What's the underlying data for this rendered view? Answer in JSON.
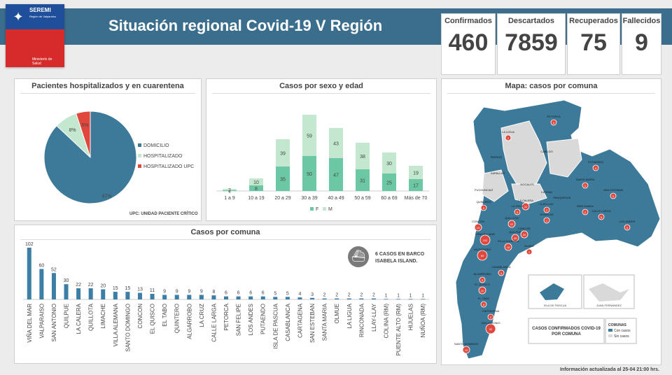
{
  "header": {
    "title": "Situación regional Covid-19 V Región",
    "logo_title": "SEREMI",
    "logo_subtitle": "Región de Valparaíso",
    "logo_ministry_line1": "Ministerio de",
    "logo_ministry_line2": "Salud"
  },
  "kpis": [
    {
      "label": "Confirmados",
      "value": "460"
    },
    {
      "label": "Descartados",
      "value": "7859"
    },
    {
      "label": "Recuperados",
      "value": "75"
    },
    {
      "label": "Fallecidos",
      "value": "9"
    }
  ],
  "colors": {
    "header": "#3b6e8c",
    "dark": "#3d7a99",
    "light_green": "#c3e8cf",
    "green": "#6cc7a5",
    "red": "#e0473d",
    "bar": "#3c7ea6",
    "gray": "#d9d9d9"
  },
  "panels": {
    "pie_title": "Pacientes hospitalizados  y en cuarentena",
    "pie_note": "UPC: UNIDAD PACIENTE CRÍTICO",
    "sex_age_title": "Casos por sexo y edad",
    "comuna_title": "Casos por comuna",
    "map_title": "Mapa: casos por comuna"
  },
  "ship_note": {
    "line1": "6 CASOS EN BARCO",
    "line2": "ISABELA ISLAND."
  },
  "map": {
    "legend_title": "CASOS CONFIRMADOS COVID-19 POR COMUNA",
    "legend_label": "COMUNAS",
    "legend_with": "Con casos",
    "legend_without": "Sin casos",
    "island1": "ISLA DE PASCUA",
    "island2": "JUAN FERNÁNDEZ",
    "labels": [
      "PETORCA",
      "LA LIGUA",
      "CABILDO",
      "PAPUDO",
      "ZAPALLAR",
      "PUTAENDO",
      "SANTA MARÍA",
      "SAN ESTEBAN",
      "NOGALES",
      "CATEMU",
      "PANQUEHUE",
      "LLAY-LLAY",
      "LOS ANDES",
      "CALLE LARGA",
      "RINCONADA",
      "HIJUELAS",
      "LA CALERA",
      "LA CRUZ",
      "QUILLOTA",
      "CONCÓN",
      "QUINTERO",
      "PUCHUNCAVÍ",
      "VIÑA DEL MAR",
      "VALPARAÍSO",
      "QUILPUÉ",
      "VILLA ALEMANA",
      "LIMACHE",
      "OLMUÉ",
      "CASABLANCA",
      "ALGARROBO",
      "EL QUISCO",
      "EL TABO",
      "CARTAGENA",
      "SAN ANTONIO",
      "SANTO DOMINGO"
    ]
  },
  "footer": "Información  actualizada al 25-04 21:00 hrs.",
  "chart_data": [
    {
      "type": "pie",
      "title": "Pacientes hospitalizados  y en cuarentena",
      "slices": [
        {
          "label": "DOMICILIO",
          "value": 87,
          "display": "87%",
          "color": "#3d7a99"
        },
        {
          "label": "HOSPITALIZADO",
          "value": 8,
          "display": "8%",
          "color": "#c3e8cf"
        },
        {
          "label": "HOSPITALIZADO UPC",
          "value": 5,
          "display": "5%",
          "color": "#e0473d"
        }
      ],
      "legend": "right"
    },
    {
      "type": "bar",
      "title": "Casos por sexo y edad",
      "stacked": true,
      "categories": [
        "1 a 9",
        "10 a 19",
        "20 a 29",
        "30 a 39",
        "40 a 49",
        "50 a 59",
        "60 a 69",
        "Más de 70"
      ],
      "series": [
        {
          "name": "F",
          "values": [
            1,
            8,
            35,
            50,
            47,
            31,
            25,
            17
          ],
          "labels": [
            "1",
            "8",
            "35",
            "50",
            "47",
            "31",
            "25",
            "17"
          ],
          "color": "#6cc7a5"
        },
        {
          "name": "M",
          "values": [
            2,
            10,
            39,
            59,
            43,
            38,
            30,
            19
          ],
          "labels": [
            "2",
            "10",
            "39",
            "59",
            "43",
            "38",
            "30",
            "19"
          ],
          "color": "#c3e8cf"
        }
      ],
      "legend": "bottom",
      "grid": false
    },
    {
      "type": "bar",
      "title": "Casos por comuna",
      "categories": [
        "VIÑA DEL MAR",
        "VALPARAISO",
        "SAN ANTONIO",
        "QUILPUE",
        "LA CALERA",
        "QUILLOTA",
        "LIMACHE",
        "VILLA ALEMANA",
        "SANTO DOMINGO",
        "CONCON",
        "EL QUISCO",
        "EL TABO",
        "QUINTERO",
        "ALGARROBO",
        "LA CRUZ",
        "CALLE LARGA",
        "PETORCA",
        "SAN FELIPE",
        "LOS ANDES",
        "PUTAENDO",
        "ISLA DE PASCUA",
        "CASABLANCA",
        "CARTAGENA",
        "SAN ESTEBAN",
        "SANTA MARIA",
        "OLMUE",
        "LA LIGUA",
        "RINCONADA",
        "LLAY-LLAY",
        "COLINA (RM)",
        "PUENTE ALTO (RM)",
        "HIJUELAS",
        "NUÑOA (RM)"
      ],
      "values": [
        102,
        60,
        52,
        30,
        22,
        22,
        20,
        15,
        15,
        13,
        11,
        9,
        9,
        9,
        9,
        8,
        6,
        6,
        6,
        6,
        5,
        5,
        4,
        3,
        2,
        2,
        2,
        2,
        2,
        1,
        1,
        1,
        1
      ],
      "labels": [
        "102",
        "60",
        "52",
        "30",
        "22",
        "22",
        "20",
        "15",
        "15",
        "13",
        "11",
        "9",
        "9",
        "9",
        "9",
        "8",
        "6",
        "6",
        "6",
        "6",
        "5",
        "5",
        "4",
        "3",
        "2",
        "2",
        "2",
        "2",
        "2",
        "1",
        "1",
        "1",
        "1"
      ],
      "color": "#3c7ea6",
      "grid": false
    }
  ]
}
